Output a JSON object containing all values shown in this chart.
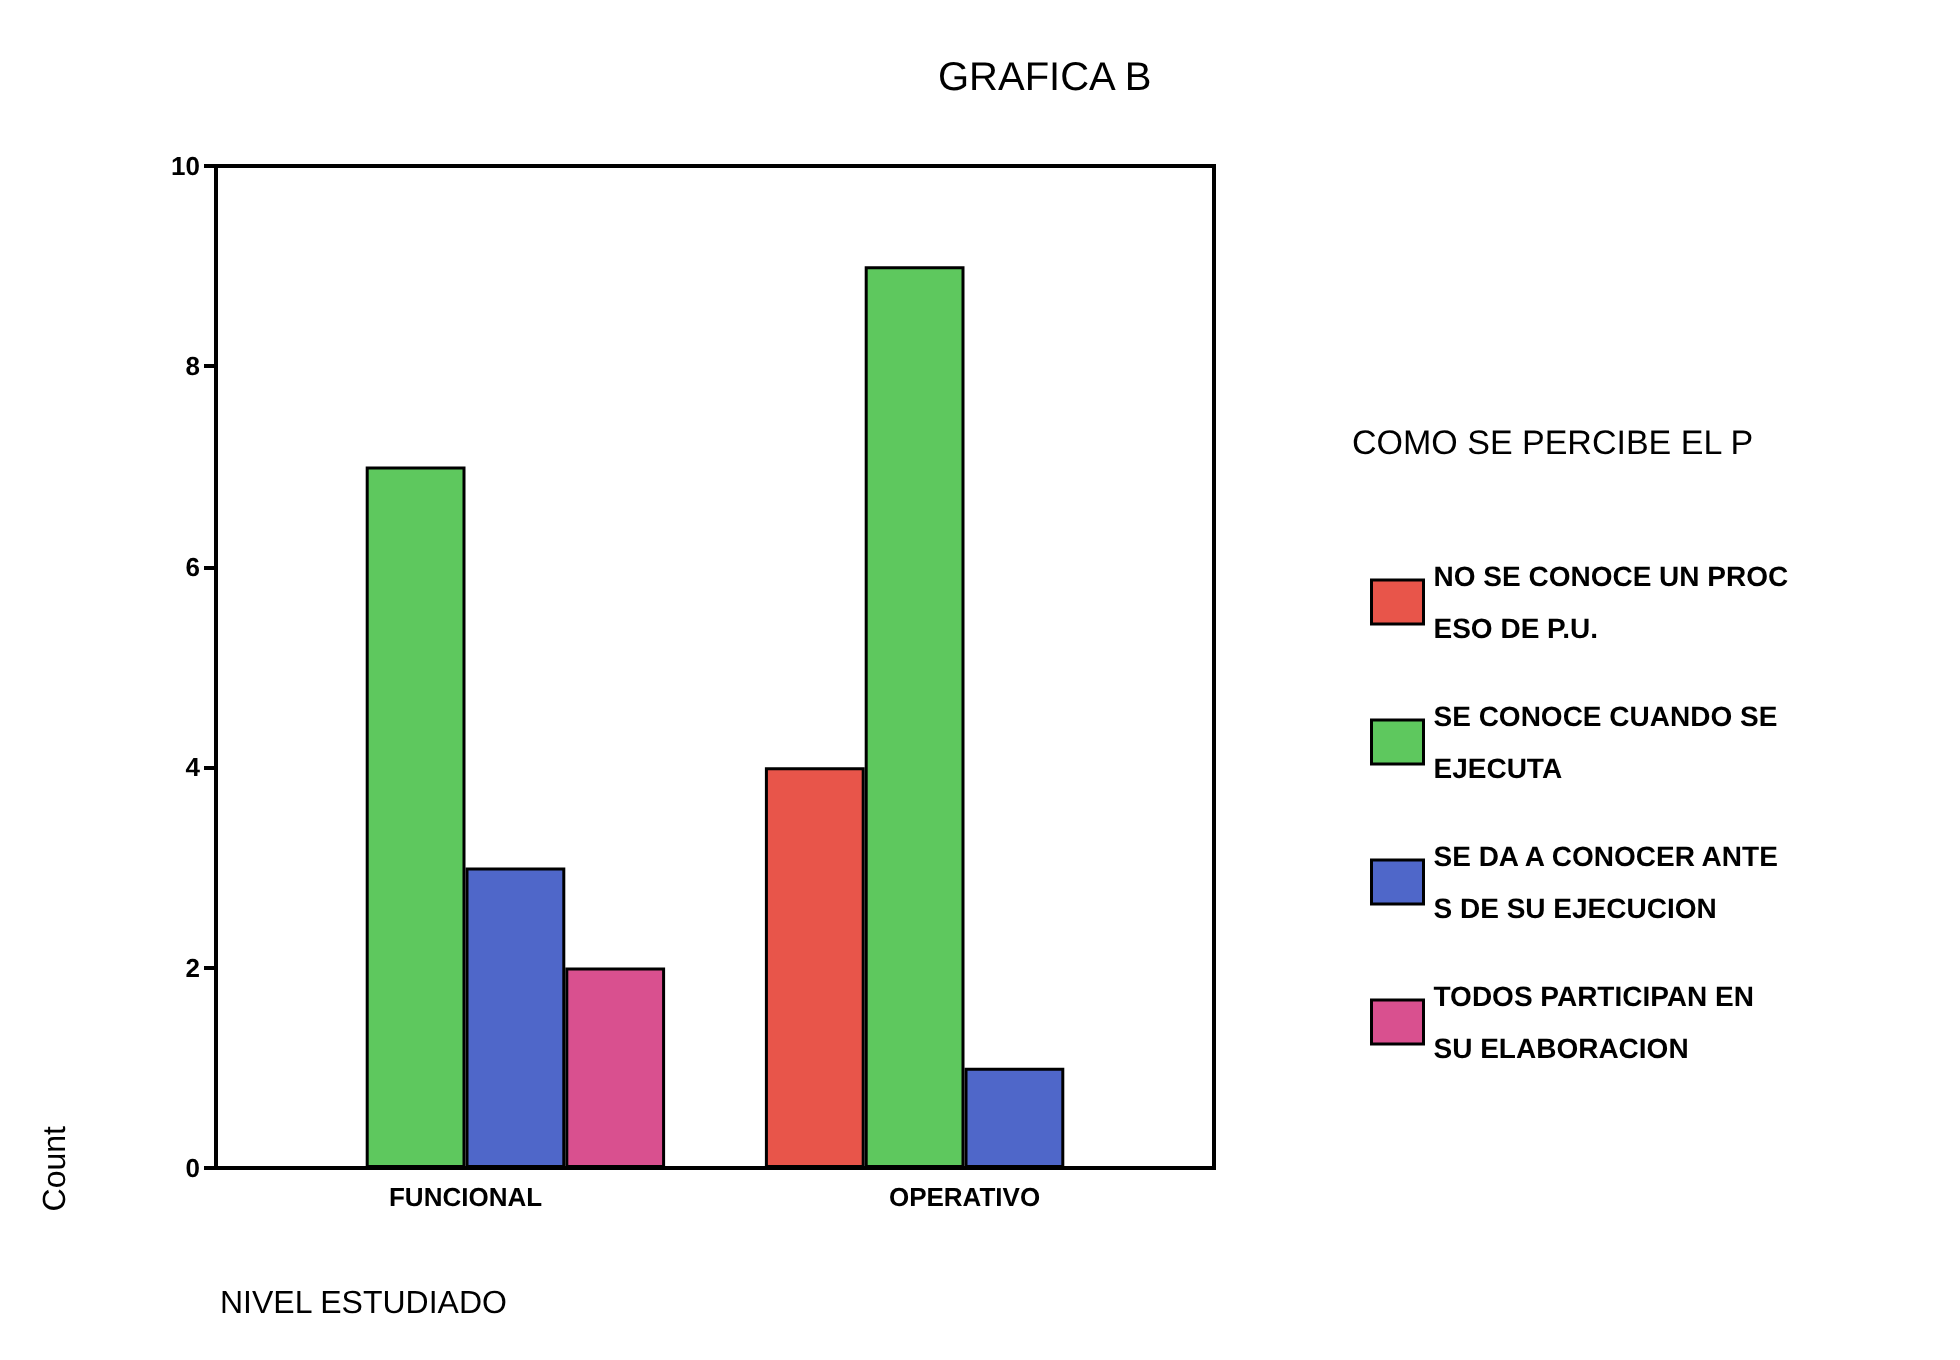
{
  "chart_data": {
    "type": "bar",
    "title": "GRAFICA B",
    "xlabel": "NIVEL ESTUDIADO",
    "ylabel": "Count",
    "legend_title": "COMO SE PERCIBE EL P",
    "categories": [
      "FUNCIONAL",
      "OPERATIVO"
    ],
    "series": [
      {
        "name": "NO SE CONOCE UN PROC\nESO DE P.U.",
        "color": "#e8554a",
        "values": [
          null,
          4
        ]
      },
      {
        "name": "SE CONOCE CUANDO SE\nEJECUTA",
        "color": "#5ec85e",
        "values": [
          7,
          9
        ]
      },
      {
        "name": "SE DA A CONOCER ANTE\nS DE SU EJECUCION",
        "color": "#4f67c9",
        "values": [
          3,
          1
        ]
      },
      {
        "name": "TODOS PARTICIPAN EN\nSU ELABORACION",
        "color": "#d9508f",
        "values": [
          2,
          null
        ]
      }
    ],
    "ylim": [
      0,
      10
    ],
    "yticks": [
      0,
      2,
      4,
      6,
      8,
      10
    ],
    "grid": false,
    "legend": "right"
  }
}
